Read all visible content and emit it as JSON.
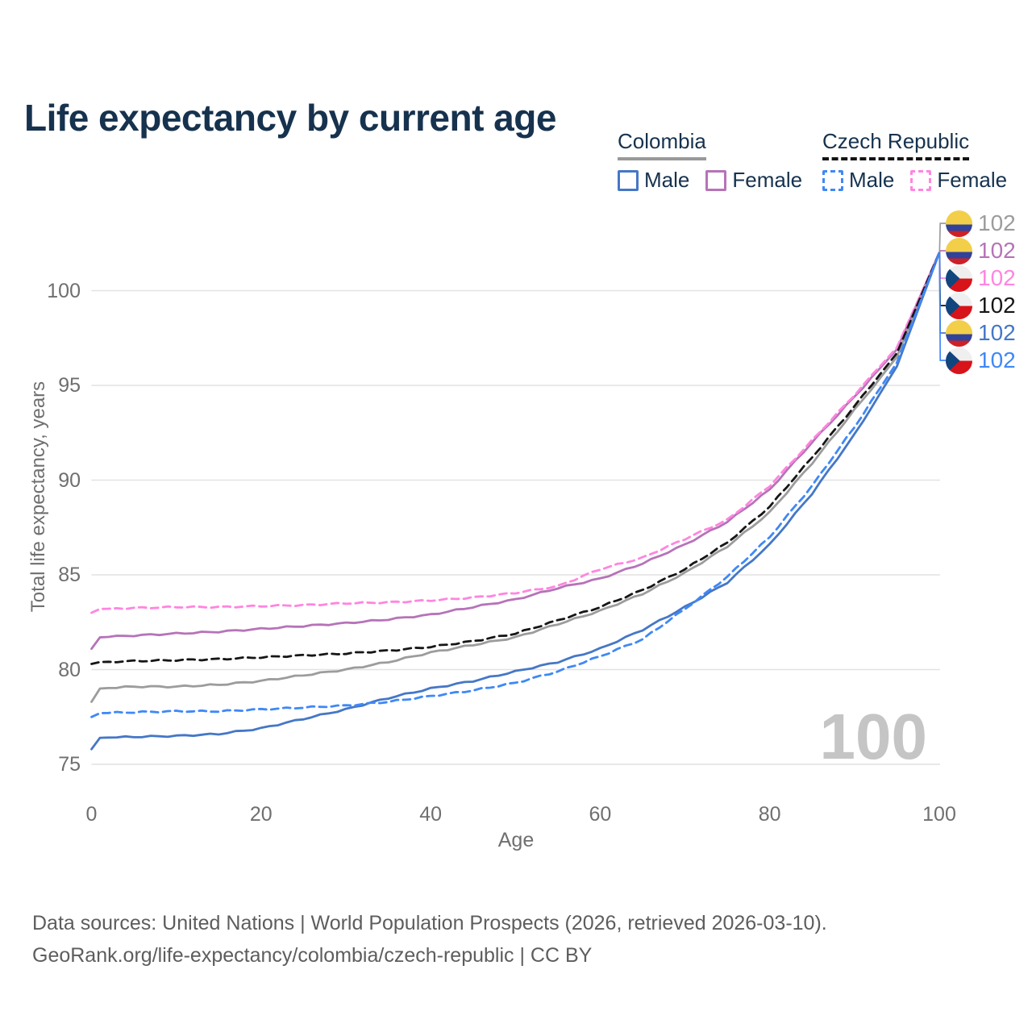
{
  "title": "Life expectancy by current age",
  "legend": {
    "groups": [
      {
        "label": "Colombia",
        "items": [
          {
            "label": "Male"
          },
          {
            "label": "Female"
          }
        ]
      },
      {
        "label": "Czech Republic",
        "items": [
          {
            "label": "Male"
          },
          {
            "label": "Female"
          }
        ]
      }
    ]
  },
  "watermark_age": "100",
  "footer": {
    "line1": "Data sources: United Nations | World Population Prospects (2026, retrieved 2026-03-10).",
    "line2": "GeoRank.org/life-expectancy/colombia/czech-republic | CC BY"
  },
  "colors": {
    "title_text": "#16324e",
    "axis_text": "#6f6f6f",
    "gridline": "#e2e2e2",
    "watermark": "#c5c5c5",
    "colombia_total": "#9c9c9c",
    "colombia_male": "#4577c6",
    "colombia_female": "#b673b8",
    "czech_total": "#161616",
    "czech_male": "#3f88f7",
    "czech_female": "#ff85e0"
  },
  "chart_data": {
    "type": "line",
    "title": "Life expectancy by current age",
    "xlabel": "Age",
    "ylabel": "Total life expectancy, years",
    "xlim": [
      0,
      100
    ],
    "ylim": [
      75,
      100
    ],
    "xticks": [
      0,
      20,
      40,
      60,
      80,
      100
    ],
    "yticks": [
      75,
      80,
      85,
      90,
      95,
      100
    ],
    "grid": true,
    "legend_position": "top-right",
    "x": [
      0,
      1,
      5,
      10,
      15,
      20,
      25,
      30,
      35,
      40,
      45,
      50,
      55,
      60,
      65,
      70,
      75,
      80,
      85,
      90,
      95,
      100
    ],
    "series": [
      {
        "name": "Colombia Total",
        "country": "Colombia",
        "sex": "Both",
        "line_style": "solid",
        "color": "#9c9c9c",
        "flag": "co",
        "end_label": "102",
        "values": [
          78.3,
          79.0,
          79.1,
          79.1,
          79.2,
          79.4,
          79.7,
          80.0,
          80.4,
          80.9,
          81.3,
          81.7,
          82.4,
          83.1,
          84.0,
          85.1,
          86.5,
          88.3,
          90.9,
          93.7,
          96.5,
          102.0
        ]
      },
      {
        "name": "Colombia Female",
        "country": "Colombia",
        "sex": "Female",
        "line_style": "solid",
        "color": "#b673b8",
        "flag": "co",
        "end_label": "102",
        "values": [
          81.1,
          81.7,
          81.8,
          81.9,
          82.0,
          82.15,
          82.3,
          82.45,
          82.65,
          82.9,
          83.3,
          83.7,
          84.3,
          84.8,
          85.6,
          86.6,
          87.8,
          89.5,
          92.0,
          94.4,
          96.9,
          102.0
        ]
      },
      {
        "name": "Czech Republic Female",
        "country": "Czech Republic",
        "sex": "Female",
        "line_style": "dashed",
        "color": "#ff85e0",
        "flag": "cz",
        "end_label": "102",
        "values": [
          83.0,
          83.2,
          83.25,
          83.3,
          83.3,
          83.35,
          83.4,
          83.5,
          83.55,
          83.65,
          83.8,
          84.05,
          84.4,
          85.3,
          85.9,
          86.9,
          87.9,
          89.7,
          92.1,
          94.5,
          97.0,
          102.0
        ]
      },
      {
        "name": "Czech Republic Total",
        "country": "Czech Republic",
        "sex": "Both",
        "line_style": "dashed",
        "color": "#161616",
        "flag": "cz",
        "end_label": "102",
        "values": [
          80.3,
          80.4,
          80.45,
          80.5,
          80.55,
          80.65,
          80.75,
          80.85,
          81.0,
          81.2,
          81.5,
          81.9,
          82.6,
          83.3,
          84.2,
          85.3,
          86.7,
          88.6,
          91.2,
          93.9,
          96.7,
          102.0
        ]
      },
      {
        "name": "Colombia Male",
        "country": "Colombia",
        "sex": "Male",
        "line_style": "solid",
        "color": "#4577c6",
        "flag": "co",
        "end_label": "102",
        "values": [
          75.8,
          76.4,
          76.45,
          76.5,
          76.6,
          76.9,
          77.4,
          77.9,
          78.5,
          79.0,
          79.4,
          79.9,
          80.4,
          81.1,
          82.1,
          83.3,
          84.6,
          86.6,
          89.3,
          92.4,
          96.0,
          102.0
        ]
      },
      {
        "name": "Czech Republic Male",
        "country": "Czech Republic",
        "sex": "Male",
        "line_style": "dashed",
        "color": "#3f88f7",
        "flag": "cz",
        "end_label": "102",
        "values": [
          77.5,
          77.7,
          77.75,
          77.8,
          77.8,
          77.9,
          78.0,
          78.1,
          78.3,
          78.6,
          78.9,
          79.3,
          79.9,
          80.7,
          81.6,
          83.2,
          84.9,
          87.0,
          89.7,
          92.8,
          96.2,
          102.0
        ]
      }
    ]
  }
}
